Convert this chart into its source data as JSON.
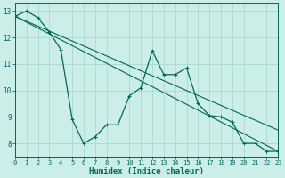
{
  "title": "",
  "xlabel": "Humidex (Indice chaleur)",
  "ylabel": "",
  "bg_color": "#cceee8",
  "grid_color": "#aad8d0",
  "line_color": "#006858",
  "main_x": [
    0,
    1,
    2,
    3,
    4,
    5,
    6,
    7,
    8,
    9,
    10,
    11,
    12,
    13,
    14,
    15,
    16,
    17,
    18,
    19,
    20,
    21,
    22,
    23
  ],
  "main_y": [
    12.8,
    13.0,
    12.75,
    12.2,
    11.55,
    8.9,
    8.0,
    8.25,
    8.7,
    8.7,
    9.8,
    10.1,
    11.5,
    10.6,
    10.6,
    10.85,
    9.5,
    9.05,
    9.0,
    8.8,
    8.0,
    8.0,
    7.7,
    7.7
  ],
  "trend1_x": [
    0,
    23
  ],
  "trend1_y": [
    12.8,
    7.7
  ],
  "trend2_x": [
    0,
    23
  ],
  "trend2_y": [
    12.8,
    8.5
  ],
  "xlim": [
    0,
    23
  ],
  "ylim": [
    7.5,
    13.3
  ],
  "yticks": [
    8,
    9,
    10,
    11,
    12,
    13
  ],
  "xticks": [
    0,
    1,
    2,
    3,
    4,
    5,
    6,
    7,
    8,
    9,
    10,
    11,
    12,
    13,
    14,
    15,
    16,
    17,
    18,
    19,
    20,
    21,
    22,
    23
  ]
}
